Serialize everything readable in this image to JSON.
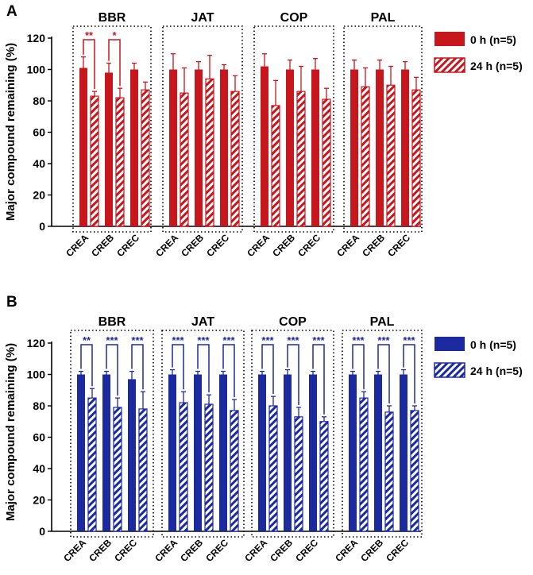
{
  "charts": [
    {
      "panel_label": "A",
      "ylabel": "Major compound remaining (%)",
      "legend": [
        {
          "label": "0 h (n=5)",
          "pattern": "solid"
        },
        {
          "label": "24 h (n=5)",
          "pattern": "hatched"
        }
      ],
      "color": "#c8161d"
    },
    {
      "panel_label": "B",
      "ylabel": "Major compound remaining (%)",
      "legend": [
        {
          "label": "0 h (n=5)",
          "pattern": "solid"
        },
        {
          "label": "24 h (n=5)",
          "pattern": "hatched"
        }
      ],
      "color": "#1c2aa0"
    }
  ],
  "chart_data": [
    {
      "type": "bar",
      "panel": "A",
      "ylabel": "Major compound remaining (%)",
      "ylim": [
        0,
        120
      ],
      "yticks": [
        0,
        20,
        40,
        60,
        80,
        100,
        120
      ],
      "groups": [
        "BBR",
        "JAT",
        "COP",
        "PAL"
      ],
      "categories": [
        "CREA",
        "CREB",
        "CREC"
      ],
      "series": [
        {
          "name": "0 h (n=5)",
          "values": [
            [
              101,
              98,
              100
            ],
            [
              100,
              100,
              100
            ],
            [
              102,
              100,
              100
            ],
            [
              100,
              100,
              100
            ]
          ],
          "errors": [
            [
              7,
              6,
              4
            ],
            [
              10,
              5,
              3
            ],
            [
              8,
              6,
              7
            ],
            [
              6,
              6,
              5
            ]
          ]
        },
        {
          "name": "24 h (n=5)",
          "values": [
            [
              83,
              82,
              87
            ],
            [
              85,
              94,
              86
            ],
            [
              77,
              86,
              81
            ],
            [
              89,
              90,
              87
            ]
          ],
          "errors": [
            [
              3,
              6,
              5
            ],
            [
              16,
              15,
              10
            ],
            [
              16,
              16,
              7
            ],
            [
              12,
              12,
              8
            ]
          ]
        }
      ],
      "significance": [
        [
          "**",
          "*",
          ""
        ],
        [
          "",
          "",
          ""
        ],
        [
          "",
          "",
          ""
        ],
        [
          "",
          "",
          ""
        ]
      ]
    },
    {
      "type": "bar",
      "panel": "B",
      "ylabel": "Major compound remaining (%)",
      "ylim": [
        0,
        120
      ],
      "yticks": [
        0,
        20,
        40,
        60,
        80,
        100,
        120
      ],
      "groups": [
        "BBR",
        "JAT",
        "COP",
        "PAL"
      ],
      "categories": [
        "CREA",
        "CREB",
        "CREC"
      ],
      "series": [
        {
          "name": "0 h (n=5)",
          "values": [
            [
              100,
              100,
              97
            ],
            [
              100,
              100,
              100
            ],
            [
              100,
              100,
              100
            ],
            [
              100,
              100,
              100
            ]
          ],
          "errors": [
            [
              2,
              2,
              5
            ],
            [
              3,
              2,
              2
            ],
            [
              2,
              3,
              2
            ],
            [
              2,
              2,
              3
            ]
          ]
        },
        {
          "name": "24 h (n=5)",
          "values": [
            [
              85,
              79,
              78
            ],
            [
              82,
              81,
              77
            ],
            [
              80,
              73,
              70
            ],
            [
              85,
              76,
              77
            ]
          ],
          "errors": [
            [
              6,
              6,
              11
            ],
            [
              7,
              6,
              7
            ],
            [
              6,
              6,
              3
            ],
            [
              4,
              4,
              3
            ]
          ]
        }
      ],
      "significance": [
        [
          "**",
          "***",
          "***"
        ],
        [
          "***",
          "***",
          "***"
        ],
        [
          "***",
          "***",
          "***"
        ],
        [
          "***",
          "***",
          "***"
        ]
      ]
    }
  ]
}
